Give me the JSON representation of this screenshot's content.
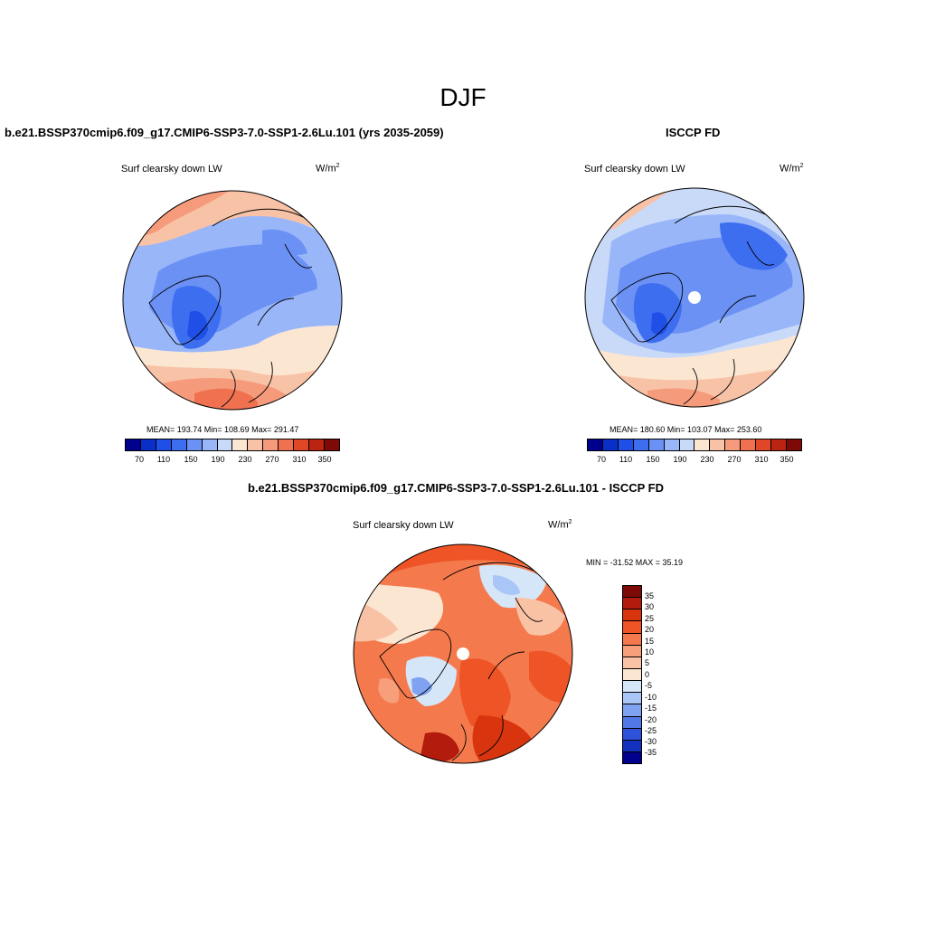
{
  "title": "DJF",
  "panels": {
    "model": {
      "title": "b.e21.BSSP370cmip6.f09_g17.CMIP6-SSP3-7.0-SSP1-2.6Lu.101 (yrs 2035-2059)",
      "variable": "Surf clearsky down LW",
      "units_base": "W/m",
      "units_exp": "2",
      "stats": "MEAN= 193.74  Min= 108.69  Max= 291.47",
      "mean": 193.74,
      "min": 108.69,
      "max": 291.47
    },
    "obs": {
      "title": "ISCCP FD",
      "variable": "Surf clearsky down LW",
      "units_base": "W/m",
      "units_exp": "2",
      "stats": "MEAN= 180.60  Min= 103.07  Max= 253.60",
      "mean": 180.6,
      "min": 103.07,
      "max": 253.6
    },
    "diff": {
      "title": "b.e21.BSSP370cmip6.f09_g17.CMIP6-SSP3-7.0-SSP1-2.6Lu.101 - ISCCP FD",
      "variable": "Surf clearsky down LW",
      "units_base": "W/m",
      "units_exp": "2",
      "stats": "MIN = -31.52 MAX =  35.19",
      "min": -31.52,
      "max": 35.19
    }
  },
  "colorbar_abs": {
    "colors": [
      "#00008c",
      "#0a2fc8",
      "#1f4fe6",
      "#3e6ef0",
      "#6b91f5",
      "#99b6f9",
      "#c9daf9",
      "#fbe6d2",
      "#f8c2a6",
      "#f59b7c",
      "#ef7150",
      "#e04726",
      "#bb2410",
      "#7d0a06"
    ],
    "labels": [
      "70",
      "110",
      "150",
      "190",
      "230",
      "270",
      "310",
      "350"
    ]
  },
  "colorbar_diff": {
    "colors": [
      "#7d0a06",
      "#b31b0c",
      "#d8350f",
      "#ee5426",
      "#f47a4d",
      "#f79e7b",
      "#f9c2a5",
      "#fbe6d2",
      "#d6e6f9",
      "#aac6f7",
      "#7fa2f1",
      "#5278e8",
      "#2f52db",
      "#1431be",
      "#00008c"
    ],
    "labels": [
      "35",
      "30",
      "25",
      "20",
      "15",
      "10",
      "5",
      "0",
      "-5",
      "-10",
      "-15",
      "-20",
      "-25",
      "-30",
      "-35"
    ]
  }
}
